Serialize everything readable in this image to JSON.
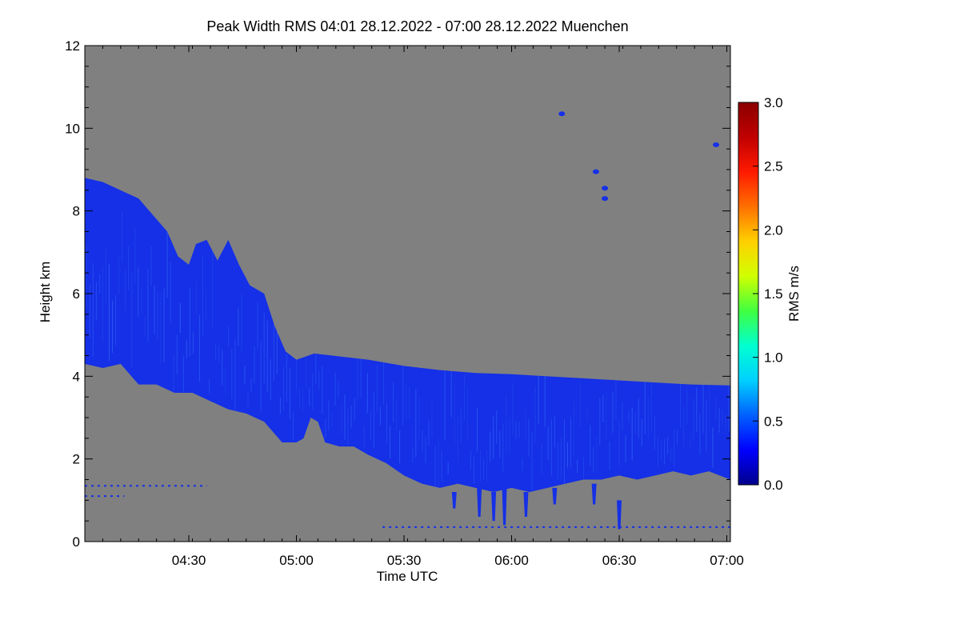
{
  "chart_data": {
    "type": "heatmap",
    "title": "Peak Width RMS   04:01 28.12.2022 - 07:00 28.12.2022 Muenchen",
    "xlabel": "Time UTC",
    "ylabel": "Height km",
    "colorbar_label": "RMS m/s",
    "xlim_minutes_utc": [
      241,
      421
    ],
    "x_ticks": [
      {
        "label": "04:30",
        "minute": 270
      },
      {
        "label": "05:00",
        "minute": 300
      },
      {
        "label": "05:30",
        "minute": 330
      },
      {
        "label": "06:00",
        "minute": 360
      },
      {
        "label": "06:30",
        "minute": 390
      },
      {
        "label": "07:00",
        "minute": 420
      }
    ],
    "ylim": [
      0,
      12
    ],
    "y_ticks": [
      "0",
      "2",
      "4",
      "6",
      "8",
      "10",
      "12"
    ],
    "colorbar_range": [
      0.0,
      3.0
    ],
    "colorbar_ticks": [
      "0.0",
      "0.5",
      "1.0",
      "1.5",
      "2.0",
      "2.5",
      "3.0"
    ],
    "no_data_color": "#808080",
    "colormap": [
      "#00008c",
      "#0000ff",
      "#0060ff",
      "#00d0ff",
      "#00ffd0",
      "#40ff40",
      "#d0ff00",
      "#ffd000",
      "#ff7000",
      "#ff1a00",
      "#c00000",
      "#8b0000"
    ],
    "signal_color": "#1530e6",
    "signal_value_range": [
      0.2,
      0.8
    ],
    "main_layer": {
      "top_km": [
        [
          241,
          8.8
        ],
        [
          246,
          8.7
        ],
        [
          251,
          8.5
        ],
        [
          256,
          8.3
        ],
        [
          261,
          7.8
        ],
        [
          264,
          7.5
        ],
        [
          267,
          6.9
        ],
        [
          270,
          6.7
        ],
        [
          272,
          7.2
        ],
        [
          275,
          7.3
        ],
        [
          278,
          6.8
        ],
        [
          281,
          7.3
        ],
        [
          284,
          6.7
        ],
        [
          287,
          6.2
        ],
        [
          291,
          6.0
        ],
        [
          294,
          5.2
        ],
        [
          297,
          4.6
        ],
        [
          300,
          4.4
        ],
        [
          305,
          4.55
        ],
        [
          310,
          4.5
        ],
        [
          320,
          4.4
        ],
        [
          330,
          4.25
        ],
        [
          340,
          4.15
        ],
        [
          350,
          4.08
        ],
        [
          360,
          4.05
        ],
        [
          370,
          4.0
        ],
        [
          380,
          3.95
        ],
        [
          390,
          3.9
        ],
        [
          400,
          3.85
        ],
        [
          410,
          3.8
        ],
        [
          421,
          3.78
        ]
      ],
      "bottom_km": [
        [
          241,
          4.3
        ],
        [
          246,
          4.2
        ],
        [
          251,
          4.3
        ],
        [
          256,
          3.8
        ],
        [
          261,
          3.8
        ],
        [
          266,
          3.6
        ],
        [
          271,
          3.6
        ],
        [
          276,
          3.4
        ],
        [
          281,
          3.2
        ],
        [
          286,
          3.1
        ],
        [
          291,
          2.9
        ],
        [
          294,
          2.6
        ],
        [
          296,
          2.4
        ],
        [
          300,
          2.4
        ],
        [
          302,
          2.5
        ],
        [
          304,
          3.0
        ],
        [
          306,
          2.9
        ],
        [
          308,
          2.4
        ],
        [
          312,
          2.3
        ],
        [
          316,
          2.3
        ],
        [
          320,
          2.1
        ],
        [
          325,
          1.9
        ],
        [
          330,
          1.6
        ],
        [
          335,
          1.4
        ],
        [
          340,
          1.3
        ],
        [
          345,
          1.4
        ],
        [
          350,
          1.3
        ],
        [
          355,
          1.2
        ],
        [
          360,
          1.3
        ],
        [
          365,
          1.2
        ],
        [
          370,
          1.3
        ],
        [
          375,
          1.4
        ],
        [
          380,
          1.5
        ],
        [
          385,
          1.5
        ],
        [
          390,
          1.6
        ],
        [
          395,
          1.5
        ],
        [
          400,
          1.6
        ],
        [
          405,
          1.7
        ],
        [
          410,
          1.6
        ],
        [
          415,
          1.7
        ],
        [
          421,
          1.5
        ]
      ]
    },
    "fall_streaks": [
      {
        "minute": 344,
        "top_km": 1.2,
        "bottom_km": 0.8
      },
      {
        "minute": 351,
        "top_km": 1.3,
        "bottom_km": 0.6
      },
      {
        "minute": 355,
        "top_km": 1.2,
        "bottom_km": 0.5
      },
      {
        "minute": 358,
        "top_km": 1.3,
        "bottom_km": 0.4
      },
      {
        "minute": 364,
        "top_km": 1.2,
        "bottom_km": 0.6
      },
      {
        "minute": 372,
        "top_km": 1.3,
        "bottom_km": 0.9
      },
      {
        "minute": 383,
        "top_km": 1.4,
        "bottom_km": 0.9
      },
      {
        "minute": 390,
        "top_km": 1.0,
        "bottom_km": 0.3
      }
    ],
    "isolated_echoes": [
      {
        "minute": 383.5,
        "height_km": 8.95
      },
      {
        "minute": 386,
        "height_km": 8.55
      },
      {
        "minute": 386,
        "height_km": 8.3
      },
      {
        "minute": 417,
        "height_km": 9.6
      },
      {
        "minute": 374,
        "height_km": 10.35
      }
    ],
    "near_ground_lines": [
      {
        "height_km": 1.35,
        "from_minute": 241,
        "to_minute": 275
      },
      {
        "height_km": 1.1,
        "from_minute": 241,
        "to_minute": 252
      },
      {
        "height_km": 0.35,
        "from_minute": 324,
        "to_minute": 421
      }
    ]
  }
}
